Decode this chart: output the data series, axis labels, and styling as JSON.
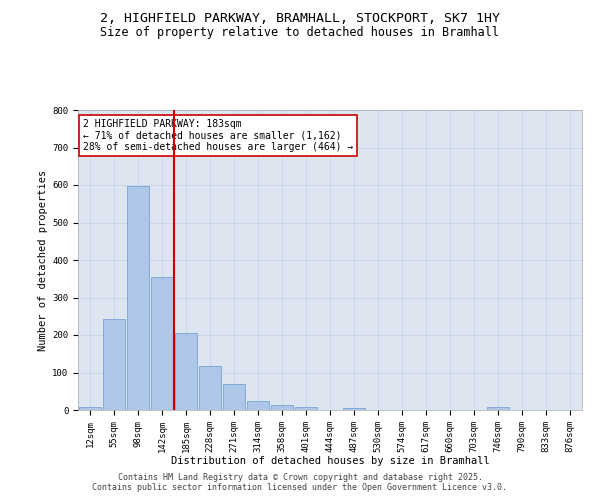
{
  "title_line1": "2, HIGHFIELD PARKWAY, BRAMHALL, STOCKPORT, SK7 1HY",
  "title_line2": "Size of property relative to detached houses in Bramhall",
  "xlabel": "Distribution of detached houses by size in Bramhall",
  "ylabel": "Number of detached properties",
  "categories": [
    "12sqm",
    "55sqm",
    "98sqm",
    "142sqm",
    "185sqm",
    "228sqm",
    "271sqm",
    "314sqm",
    "358sqm",
    "401sqm",
    "444sqm",
    "487sqm",
    "530sqm",
    "574sqm",
    "617sqm",
    "660sqm",
    "703sqm",
    "746sqm",
    "790sqm",
    "833sqm",
    "876sqm"
  ],
  "values": [
    8,
    243,
    597,
    355,
    205,
    117,
    70,
    25,
    13,
    8,
    0,
    5,
    0,
    0,
    0,
    0,
    0,
    8,
    0,
    0,
    0
  ],
  "bar_color": "#aec6e8",
  "bar_edge_color": "#6699cc",
  "vline_color": "#cc0000",
  "annotation_text": "2 HIGHFIELD PARKWAY: 183sqm\n← 71% of detached houses are smaller (1,162)\n28% of semi-detached houses are larger (464) →",
  "annotation_box_facecolor": "#ffffff",
  "annotation_box_edgecolor": "#cc0000",
  "ylim": [
    0,
    800
  ],
  "yticks": [
    0,
    100,
    200,
    300,
    400,
    500,
    600,
    700,
    800
  ],
  "grid_color": "#c8d4e8",
  "background_color": "#dde6f0",
  "footer_line1": "Contains HM Land Registry data © Crown copyright and database right 2025.",
  "footer_line2": "Contains public sector information licensed under the Open Government Licence v3.0.",
  "title_fontsize": 9.5,
  "subtitle_fontsize": 8.5,
  "axis_label_fontsize": 7.5,
  "tick_fontsize": 6.5,
  "annotation_fontsize": 7,
  "footer_fontsize": 6
}
